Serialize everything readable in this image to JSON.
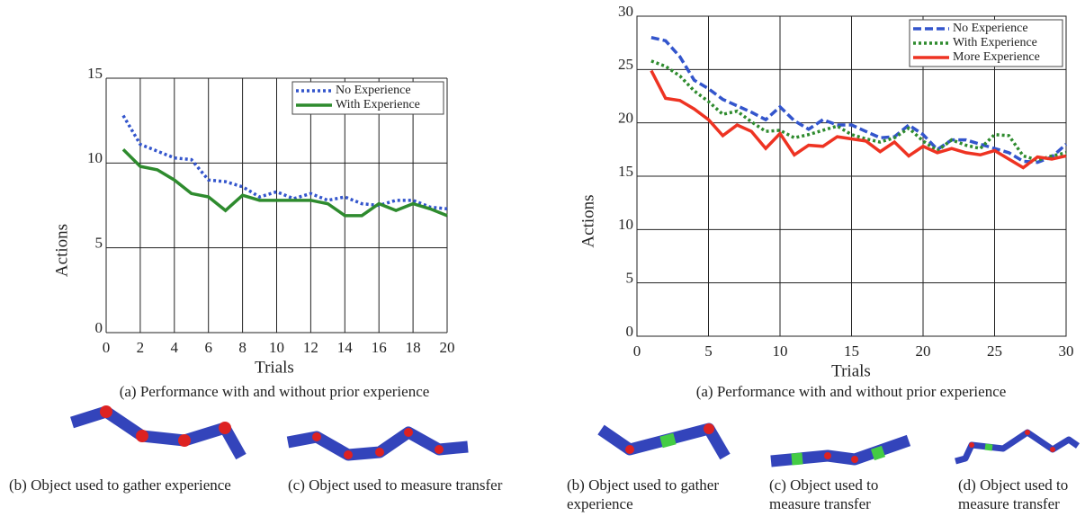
{
  "chart_data": [
    {
      "type": "line",
      "x_label": "Trials",
      "y_label": "Actions",
      "caption": "(a) Performance with and without prior experience",
      "x": [
        1,
        2,
        3,
        4,
        5,
        6,
        7,
        8,
        9,
        10,
        11,
        12,
        13,
        14,
        15,
        16,
        17,
        18,
        19,
        20
      ],
      "series": [
        {
          "name": "No Experience",
          "color": "#3355cc",
          "style": "dotted",
          "values": [
            12.8,
            11.1,
            10.7,
            10.3,
            10.2,
            9.0,
            8.9,
            8.6,
            8.0,
            8.3,
            7.9,
            8.2,
            7.8,
            8.0,
            7.6,
            7.5,
            7.8,
            7.8,
            7.4,
            7.3
          ]
        },
        {
          "name": "With Experience",
          "color": "#2e8b2e",
          "style": "solid",
          "values": [
            10.8,
            9.8,
            9.6,
            9.0,
            8.2,
            8.0,
            7.2,
            8.1,
            7.8,
            7.8,
            7.8,
            7.8,
            7.6,
            6.9,
            6.9,
            7.6,
            7.2,
            7.6,
            7.3,
            6.9
          ]
        }
      ],
      "xlim": [
        0,
        20
      ],
      "xticks": [
        0,
        2,
        4,
        6,
        8,
        10,
        12,
        14,
        16,
        18,
        20
      ],
      "ylim": [
        0,
        15
      ],
      "yticks": [
        0,
        5,
        10,
        15
      ],
      "grid": true,
      "legend": "upper right"
    },
    {
      "type": "line",
      "x_label": "Trials",
      "y_label": "Actions",
      "caption": "(a) Performance with and without prior experience",
      "x": [
        1,
        2,
        3,
        4,
        5,
        6,
        7,
        8,
        9,
        10,
        11,
        12,
        13,
        14,
        15,
        16,
        17,
        18,
        19,
        20,
        21,
        22,
        23,
        24,
        25,
        26,
        27,
        28,
        29,
        30
      ],
      "series": [
        {
          "name": "No Experience",
          "color": "#3355cc",
          "style": "dashed",
          "values": [
            28.0,
            27.7,
            26.2,
            24.0,
            23.2,
            22.2,
            21.6,
            21.0,
            20.3,
            21.5,
            20.2,
            19.4,
            20.3,
            19.8,
            19.8,
            19.2,
            18.6,
            18.7,
            19.8,
            18.9,
            17.5,
            18.4,
            18.4,
            18.0,
            17.6,
            17.2,
            16.4,
            16.3,
            16.8,
            18.0
          ]
        },
        {
          "name": "With Experience",
          "color": "#2e8b2e",
          "style": "dotted",
          "values": [
            25.8,
            25.3,
            24.4,
            23.0,
            22.0,
            20.8,
            21.1,
            20.1,
            19.2,
            19.3,
            18.6,
            18.9,
            19.3,
            19.7,
            18.9,
            18.5,
            18.2,
            18.6,
            19.5,
            18.3,
            17.4,
            18.4,
            17.9,
            17.6,
            18.9,
            18.8,
            16.9,
            16.5,
            16.9,
            17.2
          ]
        },
        {
          "name": "More Experience",
          "color": "#ee3322",
          "style": "solid",
          "values": [
            24.9,
            22.3,
            22.1,
            21.3,
            20.3,
            18.8,
            19.8,
            19.2,
            17.6,
            19.0,
            17.0,
            17.9,
            17.8,
            18.7,
            18.5,
            18.3,
            17.3,
            18.2,
            16.9,
            17.8,
            17.2,
            17.6,
            17.2,
            17.0,
            17.4,
            16.6,
            15.8,
            16.8,
            16.6,
            16.9
          ]
        }
      ],
      "xlim": [
        0,
        30
      ],
      "xticks": [
        0,
        5,
        10,
        15,
        20,
        25,
        30
      ],
      "ylim": [
        0,
        30
      ],
      "yticks": [
        0,
        5,
        10,
        15,
        20,
        25,
        30
      ],
      "grid": true,
      "legend": "upper right"
    }
  ],
  "subfigures": [
    {
      "lines": [
        "(b) Object used to gather experience"
      ]
    },
    {
      "lines": [
        "(c) Object used to measure transfer"
      ]
    },
    {
      "lines": [
        "(b) Object used to gather",
        "experience"
      ]
    },
    {
      "lines": [
        "(c) Object used to",
        "measure transfer"
      ]
    },
    {
      "lines": [
        "(d) Object used to",
        "measure transfer"
      ]
    }
  ]
}
